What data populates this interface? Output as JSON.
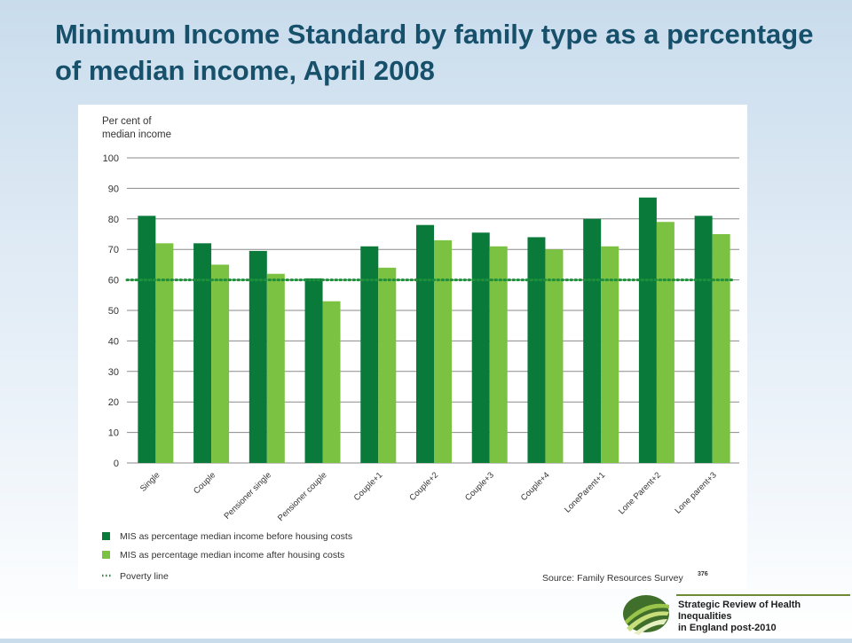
{
  "slide": {
    "title": "Minimum Income Standard by family type as a percentage of median income, April 2008"
  },
  "chart_data": {
    "type": "bar",
    "ylabel_line1": "Per cent of",
    "ylabel_line2": "median income",
    "ylim": [
      0,
      100
    ],
    "yticks": [
      0,
      10,
      20,
      30,
      40,
      50,
      60,
      70,
      80,
      90,
      100
    ],
    "grid": true,
    "categories": [
      "Single",
      "Couple",
      "Pensioner single",
      "Pensioner couple",
      "Couple+1",
      "Couple+2",
      "Couple+3",
      "Couple+4",
      "LoneParent+1",
      "Lone Parent+2",
      "Lone parent+3"
    ],
    "series": [
      {
        "name": "MIS as percentage median income before housing costs",
        "color": "#0a7a3b",
        "values": [
          81,
          72,
          69.5,
          60.5,
          71,
          78,
          75.5,
          74,
          80,
          87,
          81
        ]
      },
      {
        "name": "MIS as percentage median income after housing costs",
        "color": "#7cc242",
        "values": [
          72,
          65,
          62,
          53,
          64,
          73,
          71,
          70,
          71,
          79,
          75
        ]
      }
    ],
    "reference_line": {
      "name": "Poverty line",
      "value": 60,
      "color": "#1e8f3a"
    },
    "legend_placement": "bottom-left",
    "source": "Source: Family Resources Survey",
    "source_ref": "376"
  },
  "logo": {
    "line1": "Strategic Review of Health Inequalities",
    "line2": "in England post-2010"
  }
}
